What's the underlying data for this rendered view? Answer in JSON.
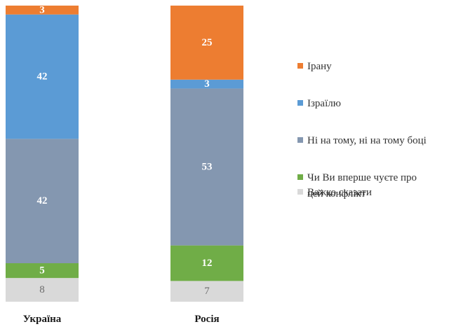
{
  "chart_data": {
    "type": "bar",
    "stacked": true,
    "categories": [
      "Україна",
      "Росія"
    ],
    "series": [
      {
        "name": "Важко сказати",
        "values": [
          8,
          7
        ],
        "color": "#d9d9d9",
        "label_color": "#6b6b6b"
      },
      {
        "name": "Чи Ви вперше чуєте про цей конфлікт",
        "values": [
          5,
          12
        ],
        "color": "#70ad47",
        "label_color": "#ffffff"
      },
      {
        "name": "Ні на тому, ні на тому боці",
        "values": [
          42,
          53
        ],
        "color": "#8497b0",
        "label_color": "#ffffff"
      },
      {
        "name": "Ізраїлю",
        "values": [
          42,
          3
        ],
        "color": "#5b9bd5",
        "label_color": "#ffffff"
      },
      {
        "name": "Ірану",
        "values": [
          3,
          25
        ],
        "color": "#ed7d31",
        "label_color": "#ffffff"
      }
    ],
    "legend": {
      "position": "right",
      "order": [
        "Ірану",
        "Ізраїлю",
        "Ні на тому, ні на тому боці",
        "Чи Ви вперше чуєте про цей конфлікт",
        "Важко сказати"
      ],
      "lines": [
        [
          "Ірану"
        ],
        [
          "Ізраїлю"
        ],
        [
          "Ні на тому, ні на тому боці"
        ],
        [
          "Чи Ви вперше чуєте про",
          "цей конфлікт"
        ],
        [
          "Важко сказати"
        ]
      ]
    },
    "ylim": [
      0,
      100
    ],
    "grid": false,
    "title": "",
    "xlabel": "",
    "ylabel": ""
  }
}
